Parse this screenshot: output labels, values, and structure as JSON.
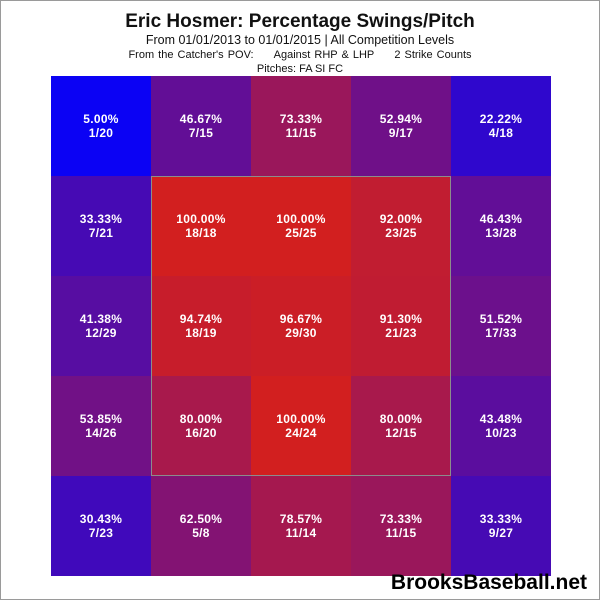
{
  "title": "Eric Hosmer: Percentage Swings/Pitch",
  "subtitle": "From 01/01/2013 to 01/01/2015 | All Competition Levels",
  "pov": {
    "view": "From the Catcher's POV:",
    "handedness": "Against RHP & LHP",
    "count": "2 Strike Counts"
  },
  "pitches": "Pitches:  FA  SI  FC",
  "branding": "BrooksBaseball.net",
  "colors": {
    "low": "#0000ff",
    "high": "#d21f1f",
    "zone_border": "#8c8c8c"
  },
  "chart_data": {
    "type": "heatmap",
    "rows": 5,
    "cols": 5,
    "cells": [
      [
        {
          "pct": "5.00%",
          "frac": "1/20",
          "value": 5.0
        },
        {
          "pct": "46.67%",
          "frac": "7/15",
          "value": 46.67
        },
        {
          "pct": "73.33%",
          "frac": "11/15",
          "value": 73.33
        },
        {
          "pct": "52.94%",
          "frac": "9/17",
          "value": 52.94
        },
        {
          "pct": "22.22%",
          "frac": "4/18",
          "value": 22.22
        }
      ],
      [
        {
          "pct": "33.33%",
          "frac": "7/21",
          "value": 33.33
        },
        {
          "pct": "100.00%",
          "frac": "18/18",
          "value": 100.0
        },
        {
          "pct": "100.00%",
          "frac": "25/25",
          "value": 100.0
        },
        {
          "pct": "92.00%",
          "frac": "23/25",
          "value": 92.0
        },
        {
          "pct": "46.43%",
          "frac": "13/28",
          "value": 46.43
        }
      ],
      [
        {
          "pct": "41.38%",
          "frac": "12/29",
          "value": 41.38
        },
        {
          "pct": "94.74%",
          "frac": "18/19",
          "value": 94.74
        },
        {
          "pct": "96.67%",
          "frac": "29/30",
          "value": 96.67
        },
        {
          "pct": "91.30%",
          "frac": "21/23",
          "value": 91.3
        },
        {
          "pct": "51.52%",
          "frac": "17/33",
          "value": 51.52
        }
      ],
      [
        {
          "pct": "53.85%",
          "frac": "14/26",
          "value": 53.85
        },
        {
          "pct": "80.00%",
          "frac": "16/20",
          "value": 80.0
        },
        {
          "pct": "100.00%",
          "frac": "24/24",
          "value": 100.0
        },
        {
          "pct": "80.00%",
          "frac": "12/15",
          "value": 80.0
        },
        {
          "pct": "43.48%",
          "frac": "10/23",
          "value": 43.48
        }
      ],
      [
        {
          "pct": "30.43%",
          "frac": "7/23",
          "value": 30.43
        },
        {
          "pct": "62.50%",
          "frac": "5/8",
          "value": 62.5
        },
        {
          "pct": "78.57%",
          "frac": "11/14",
          "value": 78.57
        },
        {
          "pct": "73.33%",
          "frac": "11/15",
          "value": 73.33
        },
        {
          "pct": "33.33%",
          "frac": "9/27",
          "value": 33.33
        }
      ]
    ]
  }
}
